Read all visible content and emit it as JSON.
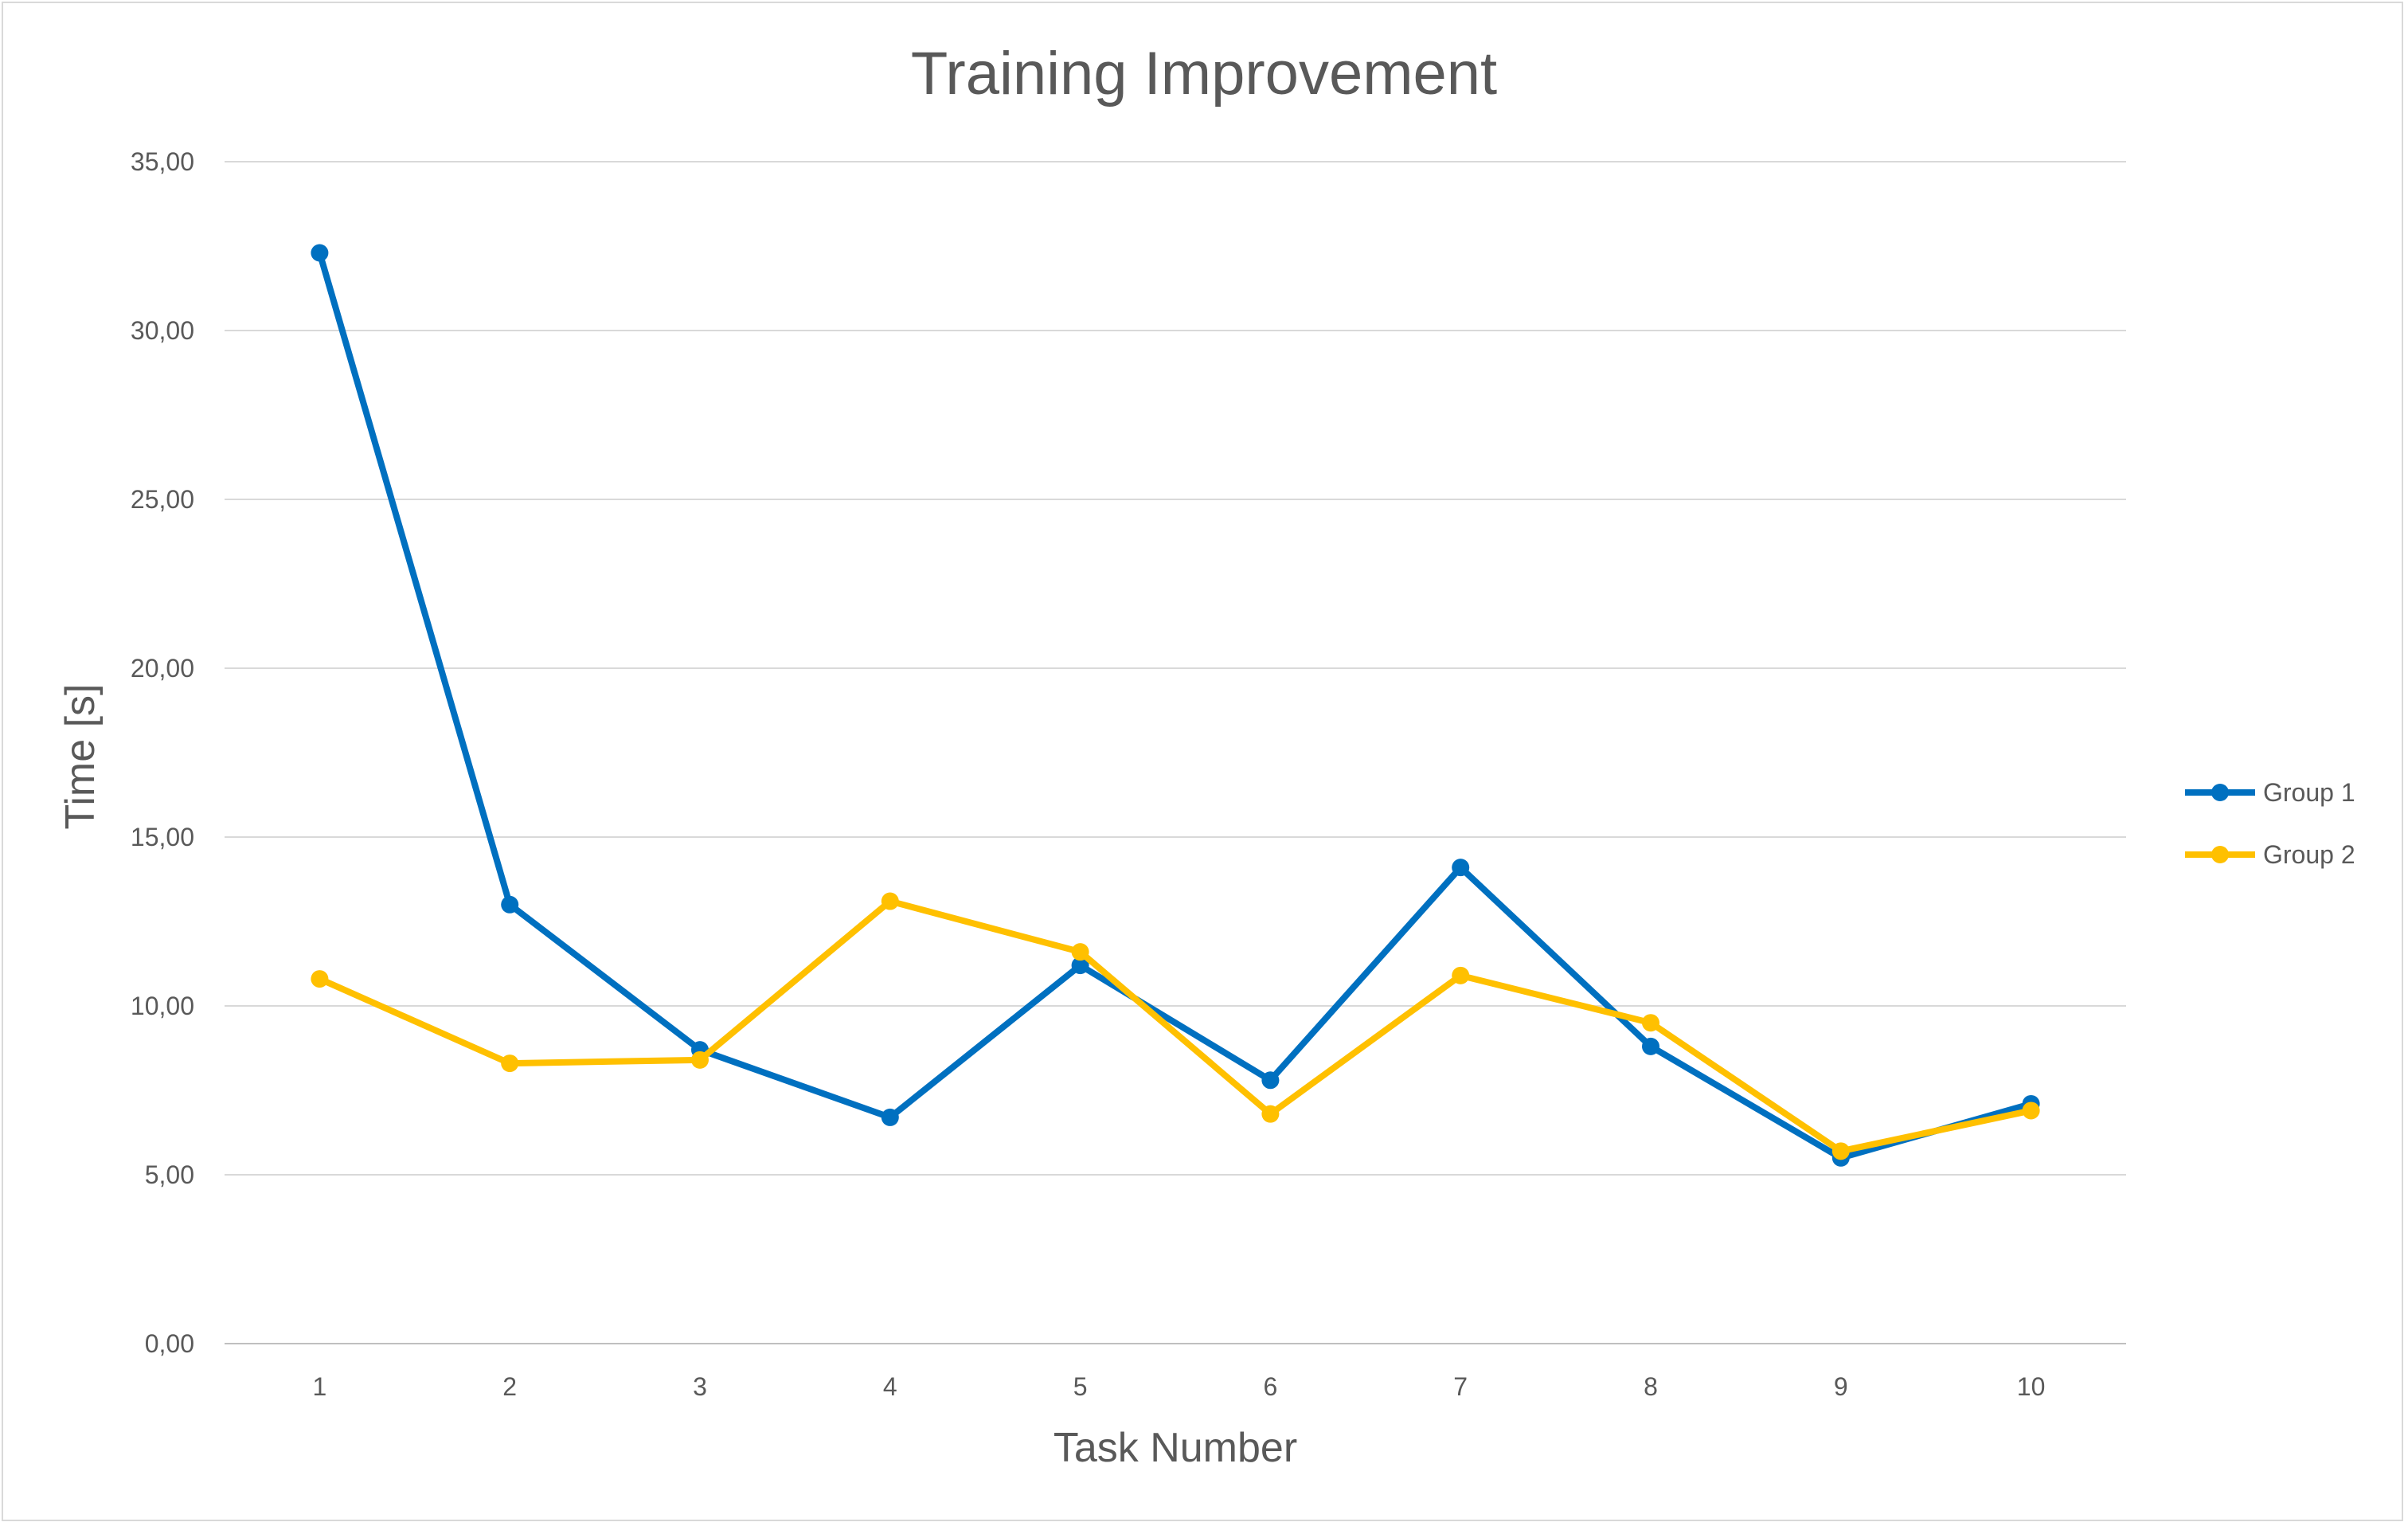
{
  "chart_data": {
    "type": "line",
    "title": "Training Improvement",
    "xlabel": "Task Number",
    "ylabel": "Time [s]",
    "categories": [
      "1",
      "2",
      "3",
      "4",
      "5",
      "6",
      "7",
      "8",
      "9",
      "10"
    ],
    "ylim": [
      0,
      35
    ],
    "yticks": [
      0,
      5,
      10,
      15,
      20,
      25,
      30,
      35
    ],
    "ytick_labels": [
      "0,00",
      "5,00",
      "10,00",
      "15,00",
      "20,00",
      "25,00",
      "30,00",
      "35,00"
    ],
    "grid": true,
    "legend_position": "right",
    "series": [
      {
        "name": "Group 1",
        "color": "#0070c0",
        "values": [
          32.3,
          13.0,
          8.7,
          6.7,
          11.2,
          7.8,
          14.1,
          8.8,
          5.5,
          7.1
        ]
      },
      {
        "name": "Group 2",
        "color": "#ffc000",
        "values": [
          10.8,
          8.3,
          8.4,
          13.1,
          11.6,
          6.8,
          10.9,
          9.5,
          5.7,
          6.9
        ]
      }
    ]
  }
}
